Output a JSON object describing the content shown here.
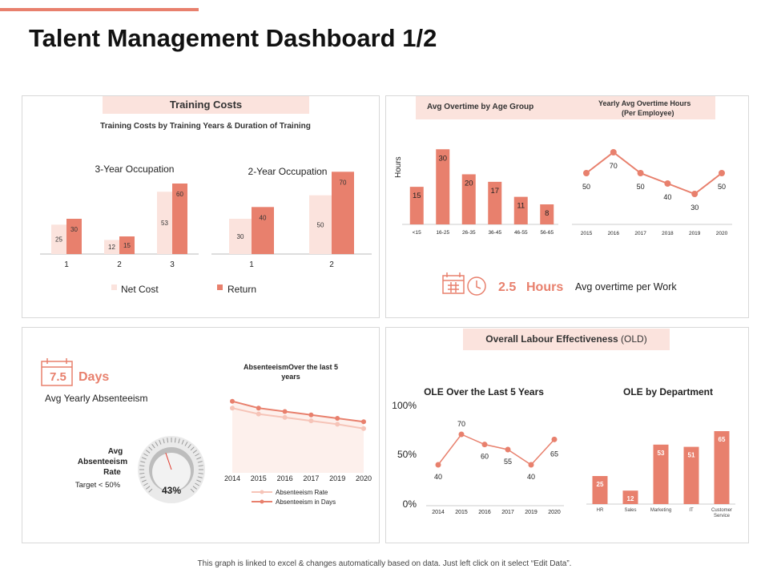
{
  "page": {
    "title": "Talent Management Dashboard 1/2",
    "footer": "This graph is linked to excel & changes automatically based on data. Just left click on it select “Edit Data”."
  },
  "colors": {
    "accent": "#e8806d",
    "light": "#fbe3dd",
    "pill": "#fbe3dd"
  },
  "icons": [
    "calendar-clock-icon",
    "calendar-icon",
    "gauge-icon"
  ],
  "training": {
    "header": "Training Costs",
    "subtitle": "Training Costs by Training Years & Duration of Training",
    "legend_net": "Net Cost",
    "legend_return": "Return"
  },
  "overtime": {
    "header_left": "Avg Overtime by Age Group",
    "header_right_1": "Yearly Avg Overtime Hours",
    "header_right_2": "(Per Employee)",
    "kpi_value": "2.5",
    "kpi_unit": "Hours",
    "kpi_label": "Avg overtime per Work"
  },
  "absenteeism": {
    "days_value": "7.5",
    "days_unit": "Days",
    "days_label": "Avg Yearly Absenteeism",
    "rate_label_1": "Avg",
    "rate_label_2": "Absenteeism",
    "rate_label_3": "Rate",
    "rate_target": "Target < 50%",
    "gauge_value": "43%",
    "gauge_fraction": 0.43
  },
  "ole": {
    "header_main": "Overall Labour Effectiveness",
    "header_suffix": "(OLD)"
  },
  "chart_data": [
    {
      "id": "training-3yr",
      "type": "bar",
      "title": "3-Year Occupation",
      "categories": [
        "1",
        "2",
        "3"
      ],
      "series": [
        {
          "name": "Net Cost",
          "values": [
            25,
            12,
            53
          ]
        },
        {
          "name": "Return",
          "values": [
            30,
            15,
            60
          ]
        }
      ],
      "ylim": [
        0,
        75
      ]
    },
    {
      "id": "training-2yr",
      "type": "bar",
      "title": "2-Year Occupation",
      "categories": [
        "1",
        "2"
      ],
      "series": [
        {
          "name": "Net Cost",
          "values": [
            30,
            50
          ]
        },
        {
          "name": "Return",
          "values": [
            40,
            70
          ]
        }
      ],
      "ylim": [
        0,
        75
      ]
    },
    {
      "id": "overtime-age",
      "type": "bar",
      "ylabel": "Hours",
      "categories": [
        "<15",
        "16-25",
        "26-35",
        "36-45",
        "46-55",
        "56-65"
      ],
      "values": [
        15,
        30,
        20,
        17,
        11,
        8
      ],
      "ylim": [
        0,
        32
      ]
    },
    {
      "id": "overtime-yearly",
      "type": "line",
      "x": [
        "2015",
        "2016",
        "2017",
        "2018",
        "2019",
        "2020"
      ],
      "values": [
        50,
        70,
        50,
        40,
        30,
        50
      ],
      "ylim": [
        20,
        80
      ]
    },
    {
      "id": "absenteeism",
      "type": "area",
      "title": "AbsenteeismOver the last 5 years",
      "x": [
        "2014",
        "2015",
        "2016",
        "2017",
        "2019",
        "2020"
      ],
      "series": [
        {
          "name": "Absenteeism Rate",
          "values": [
            7.6,
            6.9,
            6.5,
            6.1,
            5.7,
            5.2
          ]
        },
        {
          "name": "Absenteeism in Days",
          "values": [
            8.4,
            7.6,
            7.2,
            6.8,
            6.4,
            6.0
          ]
        }
      ],
      "ylim": [
        0,
        9.5
      ]
    },
    {
      "id": "ole-years",
      "type": "line",
      "title": "OLE Over the Last 5 Years",
      "x": [
        "2014",
        "2015",
        "2016",
        "2017",
        "2019",
        "2020"
      ],
      "values": [
        40,
        70,
        60,
        55,
        40,
        65
      ],
      "yticks": [
        "100%",
        "50%",
        "0%"
      ],
      "ylim": [
        0,
        100
      ]
    },
    {
      "id": "ole-dept",
      "type": "bar",
      "title": "OLE by Department",
      "categories": [
        "HR",
        "Sales",
        "Marketing",
        "IT",
        "Customer Service"
      ],
      "values": [
        25,
        12,
        53,
        51,
        65
      ],
      "ylim": [
        0,
        70
      ]
    }
  ]
}
